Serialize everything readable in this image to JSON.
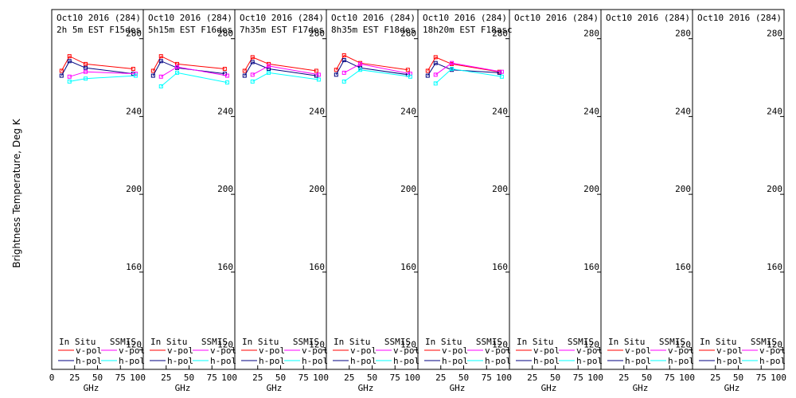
{
  "chart_data": {
    "type": "line",
    "ylabel": "Brightness Temperature, Deg K",
    "xlabel": "GHz",
    "ylim": [
      110,
      295
    ],
    "xlim": [
      0,
      100
    ],
    "y_ticks": [
      120,
      160,
      200,
      240,
      280
    ],
    "x_ticks": [
      0,
      25,
      50,
      75,
      100
    ],
    "first_x_tick_label": "0",
    "legend": {
      "in_situ": "In Situ",
      "ssmis": "SSMIS",
      "vpol": "v-pol",
      "hpol": "h-pol"
    },
    "colors": {
      "insitu_v": "#ff0000",
      "insitu_h": "#000080",
      "ssmis_v": "#ff00ff",
      "ssmis_h": "#00ffff"
    },
    "panels": [
      {
        "title1": "Oct10 2016 (284)",
        "title2": "2h 5m  EST F15des",
        "series": {
          "insitu_v": [
            [
              10.7,
              263.5
            ],
            [
              19.35,
              271
            ],
            [
              37,
              267
            ],
            [
              89,
              264.5
            ]
          ],
          "insitu_h": [
            [
              10.7,
              261
            ],
            [
              19.35,
              268.5
            ],
            [
              37,
              265
            ],
            [
              89,
              262
            ]
          ],
          "ssmis_v": [
            [
              19.35,
              260.5
            ],
            [
              37,
              263
            ],
            [
              91.65,
              262
            ]
          ],
          "ssmis_h": [
            [
              19.35,
              258
            ],
            [
              37,
              259.5
            ],
            [
              91.65,
              261
            ]
          ]
        }
      },
      {
        "title1": "Oct10 2016 (284)",
        "title2": "5h15m  EST F16des",
        "series": {
          "insitu_v": [
            [
              10.7,
              263.5
            ],
            [
              19.35,
              271
            ],
            [
              37,
              267
            ],
            [
              89,
              264.5
            ]
          ],
          "insitu_h": [
            [
              10.7,
              261
            ],
            [
              19.35,
              268.5
            ],
            [
              37,
              265
            ],
            [
              89,
              262
            ]
          ],
          "ssmis_v": [
            [
              19.35,
              260.5
            ],
            [
              37,
              265.5
            ],
            [
              91.65,
              261
            ]
          ],
          "ssmis_h": [
            [
              19.35,
              255.5
            ],
            [
              37,
              262.5
            ],
            [
              91.65,
              257.5
            ]
          ]
        }
      },
      {
        "title1": "Oct10 2016 (284)",
        "title2": "7h35m  EST F17des",
        "series": {
          "insitu_v": [
            [
              10.7,
              263.5
            ],
            [
              19.35,
              270.5
            ],
            [
              37,
              267
            ],
            [
              89,
              263.5
            ]
          ],
          "insitu_h": [
            [
              10.7,
              261
            ],
            [
              19.35,
              268
            ],
            [
              37,
              264.5
            ],
            [
              89,
              261
            ]
          ],
          "ssmis_v": [
            [
              19.35,
              261.5
            ],
            [
              37,
              266
            ],
            [
              91.65,
              261.5
            ]
          ],
          "ssmis_h": [
            [
              19.35,
              258
            ],
            [
              37,
              262.5
            ],
            [
              91.65,
              259
            ]
          ]
        }
      },
      {
        "title1": "Oct10 2016 (284)",
        "title2": "8h35m  EST F18des",
        "series": {
          "insitu_v": [
            [
              10.7,
              264
            ],
            [
              19.35,
              271.5
            ],
            [
              37,
              267.5
            ],
            [
              89,
              264
            ]
          ],
          "insitu_h": [
            [
              10.7,
              261.5
            ],
            [
              19.35,
              269
            ],
            [
              37,
              265
            ],
            [
              89,
              261.5
            ]
          ],
          "ssmis_v": [
            [
              19.35,
              262.5
            ],
            [
              37,
              267
            ],
            [
              91.65,
              262
            ]
          ],
          "ssmis_h": [
            [
              19.35,
              258
            ],
            [
              37,
              264
            ],
            [
              91.65,
              260.5
            ]
          ]
        }
      },
      {
        "title1": "Oct10 2016 (284)",
        "title2": "18h20m  EST F18asc",
        "series": {
          "insitu_v": [
            [
              10.7,
              263.5
            ],
            [
              19.35,
              270.5
            ],
            [
              37,
              267
            ],
            [
              89,
              263
            ]
          ],
          "insitu_h": [
            [
              10.7,
              261
            ],
            [
              19.35,
              267.5
            ],
            [
              37,
              264
            ],
            [
              89,
              262.5
            ]
          ],
          "ssmis_v": [
            [
              19.35,
              261.5
            ],
            [
              37,
              267.5
            ],
            [
              91.65,
              263
            ]
          ],
          "ssmis_h": [
            [
              19.35,
              257
            ],
            [
              37,
              264.5
            ],
            [
              91.65,
              260.5
            ]
          ]
        }
      },
      {
        "title1": "Oct10 2016 (284)",
        "title2": "",
        "series": {}
      },
      {
        "title1": "Oct10 2016 (284)",
        "title2": "",
        "series": {}
      },
      {
        "title1": "Oct10 2016 (284)",
        "title2": "",
        "series": {}
      }
    ]
  }
}
